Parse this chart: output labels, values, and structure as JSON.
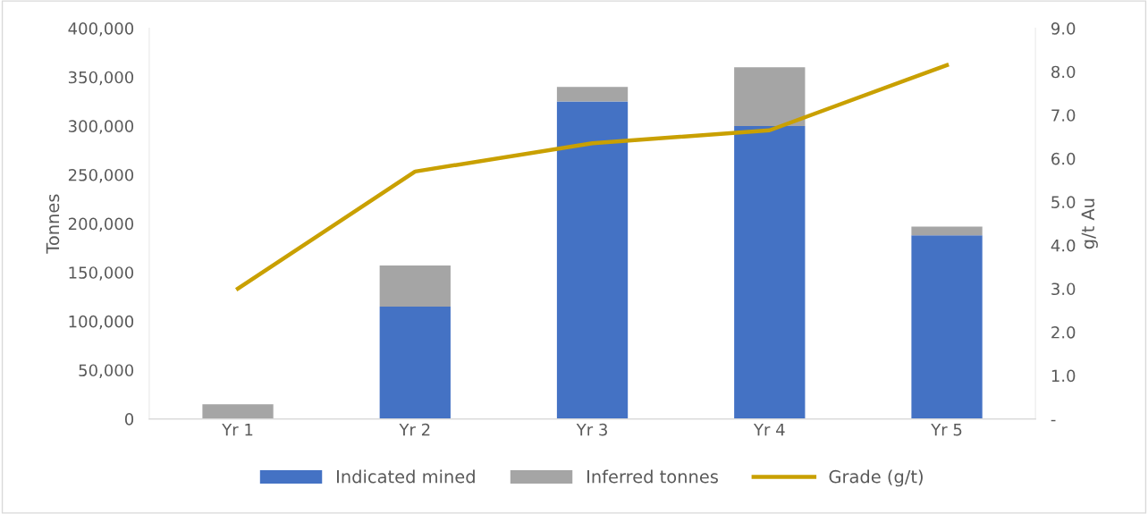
{
  "chart_data": {
    "type": "bar",
    "stacked": true,
    "categories": [
      "Yr 1",
      "Yr 2",
      "Yr 3",
      "Yr 4",
      "Yr 5"
    ],
    "ylabel": "Tonnes",
    "y2label": "g/t Au",
    "series": [
      {
        "name": "Indicated mined",
        "color": "#4472c4",
        "values": [
          0,
          115000,
          325000,
          300000,
          188000
        ]
      },
      {
        "name": "Inferred tonnes",
        "color": "#a5a5a5",
        "values": [
          15000,
          42000,
          15000,
          60000,
          9000
        ]
      },
      {
        "name": "Grade (g/t)",
        "type": "line",
        "axis": "y2",
        "color": "#c9a000",
        "values": [
          3.0,
          5.7,
          6.35,
          6.65,
          8.15
        ]
      }
    ],
    "ylim": [
      0,
      400000
    ],
    "yticks": [
      {
        "value": 0,
        "label": "0"
      },
      {
        "value": 50000,
        "label": "50,000"
      },
      {
        "value": 100000,
        "label": "100,000"
      },
      {
        "value": 150000,
        "label": "150,000"
      },
      {
        "value": 200000,
        "label": "200,000"
      },
      {
        "value": 250000,
        "label": "250,000"
      },
      {
        "value": 300000,
        "label": "300,000"
      },
      {
        "value": 350000,
        "label": "350,000"
      },
      {
        "value": 400000,
        "label": "400,000"
      }
    ],
    "y2lim": [
      0,
      9
    ],
    "y2ticks": [
      {
        "value": 0,
        "label": "-"
      },
      {
        "value": 1,
        "label": "1.0"
      },
      {
        "value": 2,
        "label": "2.0"
      },
      {
        "value": 3,
        "label": "3.0"
      },
      {
        "value": 4,
        "label": "4.0"
      },
      {
        "value": 5,
        "label": "5.0"
      },
      {
        "value": 6,
        "label": "6.0"
      },
      {
        "value": 7,
        "label": "7.0"
      },
      {
        "value": 8,
        "label": "8.0"
      },
      {
        "value": 9,
        "label": "9.0"
      }
    ],
    "grid": false,
    "legend": "bottom",
    "marker": "none",
    "line_style": "solid"
  }
}
